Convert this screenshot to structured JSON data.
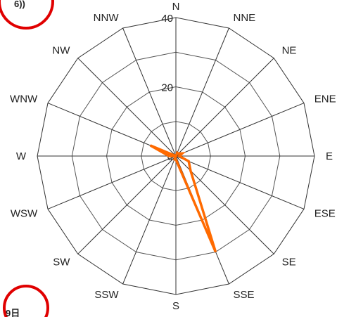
{
  "chart_data": {
    "type": "radar",
    "title": "",
    "directions": [
      "N",
      "NNE",
      "NE",
      "ENE",
      "E",
      "ESE",
      "SE",
      "SSE",
      "S",
      "SSW",
      "SW",
      "WSW",
      "W",
      "WNW",
      "NW",
      "NNW"
    ],
    "radial_ticks": [
      0,
      20,
      40
    ],
    "rlim": [
      0,
      40
    ],
    "grid": true,
    "series": [
      {
        "values": [
          0,
          1,
          1,
          2,
          1,
          4,
          6,
          30,
          1,
          1,
          0,
          0,
          2,
          8,
          0,
          0
        ],
        "color": "#ff6a00"
      }
    ],
    "badges": [
      {
        "text": "6))",
        "color": "#e00000"
      },
      {
        "text": "9日",
        "color": "#e00000"
      }
    ]
  }
}
